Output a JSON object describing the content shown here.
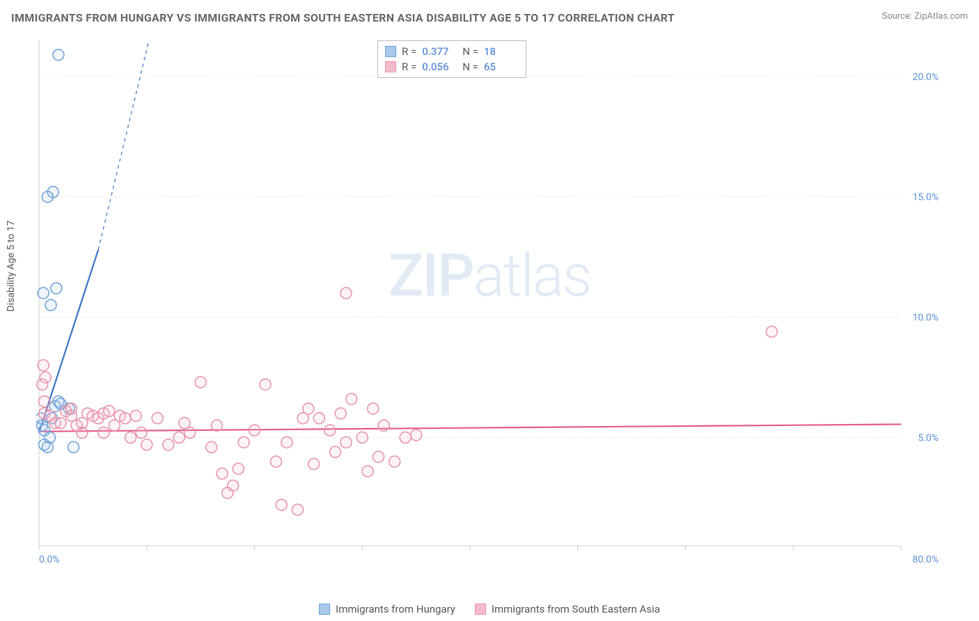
{
  "title": "IMMIGRANTS FROM HUNGARY VS IMMIGRANTS FROM SOUTH EASTERN ASIA DISABILITY AGE 5 TO 17 CORRELATION CHART",
  "source": "Source: ZipAtlas.com",
  "ylabel": "Disability Age 5 to 17",
  "watermark_a": "ZIP",
  "watermark_b": "atlas",
  "chart": {
    "type": "scatter",
    "xlim": [
      0,
      80
    ],
    "ylim": [
      0.5,
      21.5
    ],
    "xticks": [
      0,
      10,
      20,
      30,
      40,
      50,
      60,
      70,
      80
    ],
    "xtick_labels_shown": {
      "first": "0.0%",
      "last": "80.0%"
    },
    "yticks": [
      5,
      10,
      15,
      20
    ],
    "ytick_labels": [
      "5.0%",
      "10.0%",
      "15.0%",
      "20.0%"
    ],
    "grid_color": "#e6e6e6",
    "grid_dash": "3,3",
    "axis_color": "#cccccc",
    "background_color": "#ffffff",
    "marker_radius": 8,
    "marker_stroke_width": 1.5,
    "marker_fill_opacity": 0.18
  },
  "series": [
    {
      "key": "hungary",
      "name": "Immigrants from Hungary",
      "color_stroke": "#6b9fd8",
      "color_fill": "#a9c8ea",
      "R": "0.377",
      "N": "18",
      "points": [
        [
          0.2,
          5.8
        ],
        [
          0.3,
          5.5
        ],
        [
          0.5,
          5.3
        ],
        [
          0.5,
          4.7
        ],
        [
          0.8,
          4.6
        ],
        [
          1.0,
          5.0
        ],
        [
          1.2,
          5.8
        ],
        [
          1.5,
          6.3
        ],
        [
          1.8,
          6.5
        ],
        [
          2.0,
          6.4
        ],
        [
          1.1,
          10.5
        ],
        [
          1.6,
          11.2
        ],
        [
          0.4,
          11.0
        ],
        [
          1.3,
          15.2
        ],
        [
          0.8,
          15.0
        ],
        [
          1.8,
          20.9
        ],
        [
          2.8,
          6.2
        ],
        [
          3.2,
          4.6
        ]
      ],
      "trend": {
        "x1": 0,
        "y1": 5.2,
        "x2": 5.5,
        "y2": 12.8,
        "dash_to_x": 10.2,
        "dash_to_y": 21.5,
        "color": "#3a73c2",
        "width": 2.2
      }
    },
    {
      "key": "sea",
      "name": "Immigrants from South Eastern Asia",
      "color_stroke": "#e78fa8",
      "color_fill": "#f4bccb",
      "R": "0.056",
      "N": "65",
      "points": [
        [
          0.5,
          6.5
        ],
        [
          0.3,
          7.2
        ],
        [
          0.6,
          7.5
        ],
        [
          0.4,
          8.0
        ],
        [
          0.5,
          6.0
        ],
        [
          1.0,
          5.9
        ],
        [
          1.5,
          5.6
        ],
        [
          2.0,
          5.6
        ],
        [
          2.5,
          6.1
        ],
        [
          3.0,
          5.9
        ],
        [
          3.5,
          5.5
        ],
        [
          4.0,
          5.6
        ],
        [
          4.5,
          6.0
        ],
        [
          5.0,
          5.9
        ],
        [
          5.5,
          5.8
        ],
        [
          6.0,
          6.0
        ],
        [
          6.5,
          6.1
        ],
        [
          7.0,
          5.5
        ],
        [
          7.5,
          5.9
        ],
        [
          8.0,
          5.8
        ],
        [
          8.5,
          5.0
        ],
        [
          9.0,
          5.9
        ],
        [
          10.0,
          4.7
        ],
        [
          11.0,
          5.8
        ],
        [
          12.0,
          4.7
        ],
        [
          13.0,
          5.0
        ],
        [
          14.0,
          5.2
        ],
        [
          15.0,
          7.3
        ],
        [
          16.0,
          4.6
        ],
        [
          17.0,
          3.5
        ],
        [
          17.5,
          2.7
        ],
        [
          18.0,
          3.0
        ],
        [
          18.5,
          3.7
        ],
        [
          19.0,
          4.8
        ],
        [
          20.0,
          5.3
        ],
        [
          21.0,
          7.2
        ],
        [
          22.0,
          4.0
        ],
        [
          22.5,
          2.2
        ],
        [
          23.0,
          4.8
        ],
        [
          24.0,
          2.0
        ],
        [
          24.5,
          5.8
        ],
        [
          25.0,
          6.2
        ],
        [
          25.5,
          3.9
        ],
        [
          26.0,
          5.8
        ],
        [
          27.0,
          5.3
        ],
        [
          27.5,
          4.4
        ],
        [
          28.0,
          6.0
        ],
        [
          28.5,
          4.8
        ],
        [
          29.0,
          6.6
        ],
        [
          30.0,
          5.0
        ],
        [
          30.5,
          3.6
        ],
        [
          31.0,
          6.2
        ],
        [
          31.5,
          4.2
        ],
        [
          32.0,
          5.5
        ],
        [
          33.0,
          4.0
        ],
        [
          34.0,
          5.0
        ],
        [
          35.0,
          5.1
        ],
        [
          28.5,
          11.0
        ],
        [
          68.0,
          9.4
        ],
        [
          3.0,
          6.2
        ],
        [
          4.0,
          5.2
        ],
        [
          6.0,
          5.2
        ],
        [
          9.5,
          5.2
        ],
        [
          13.5,
          5.6
        ],
        [
          16.5,
          5.5
        ]
      ],
      "trend": {
        "x1": 0,
        "y1": 5.25,
        "x2": 80,
        "y2": 5.55,
        "color": "#e45b88",
        "width": 2.2
      }
    }
  ],
  "stat_legend": {
    "labels": {
      "R": "R  =",
      "N": "N  ="
    }
  }
}
